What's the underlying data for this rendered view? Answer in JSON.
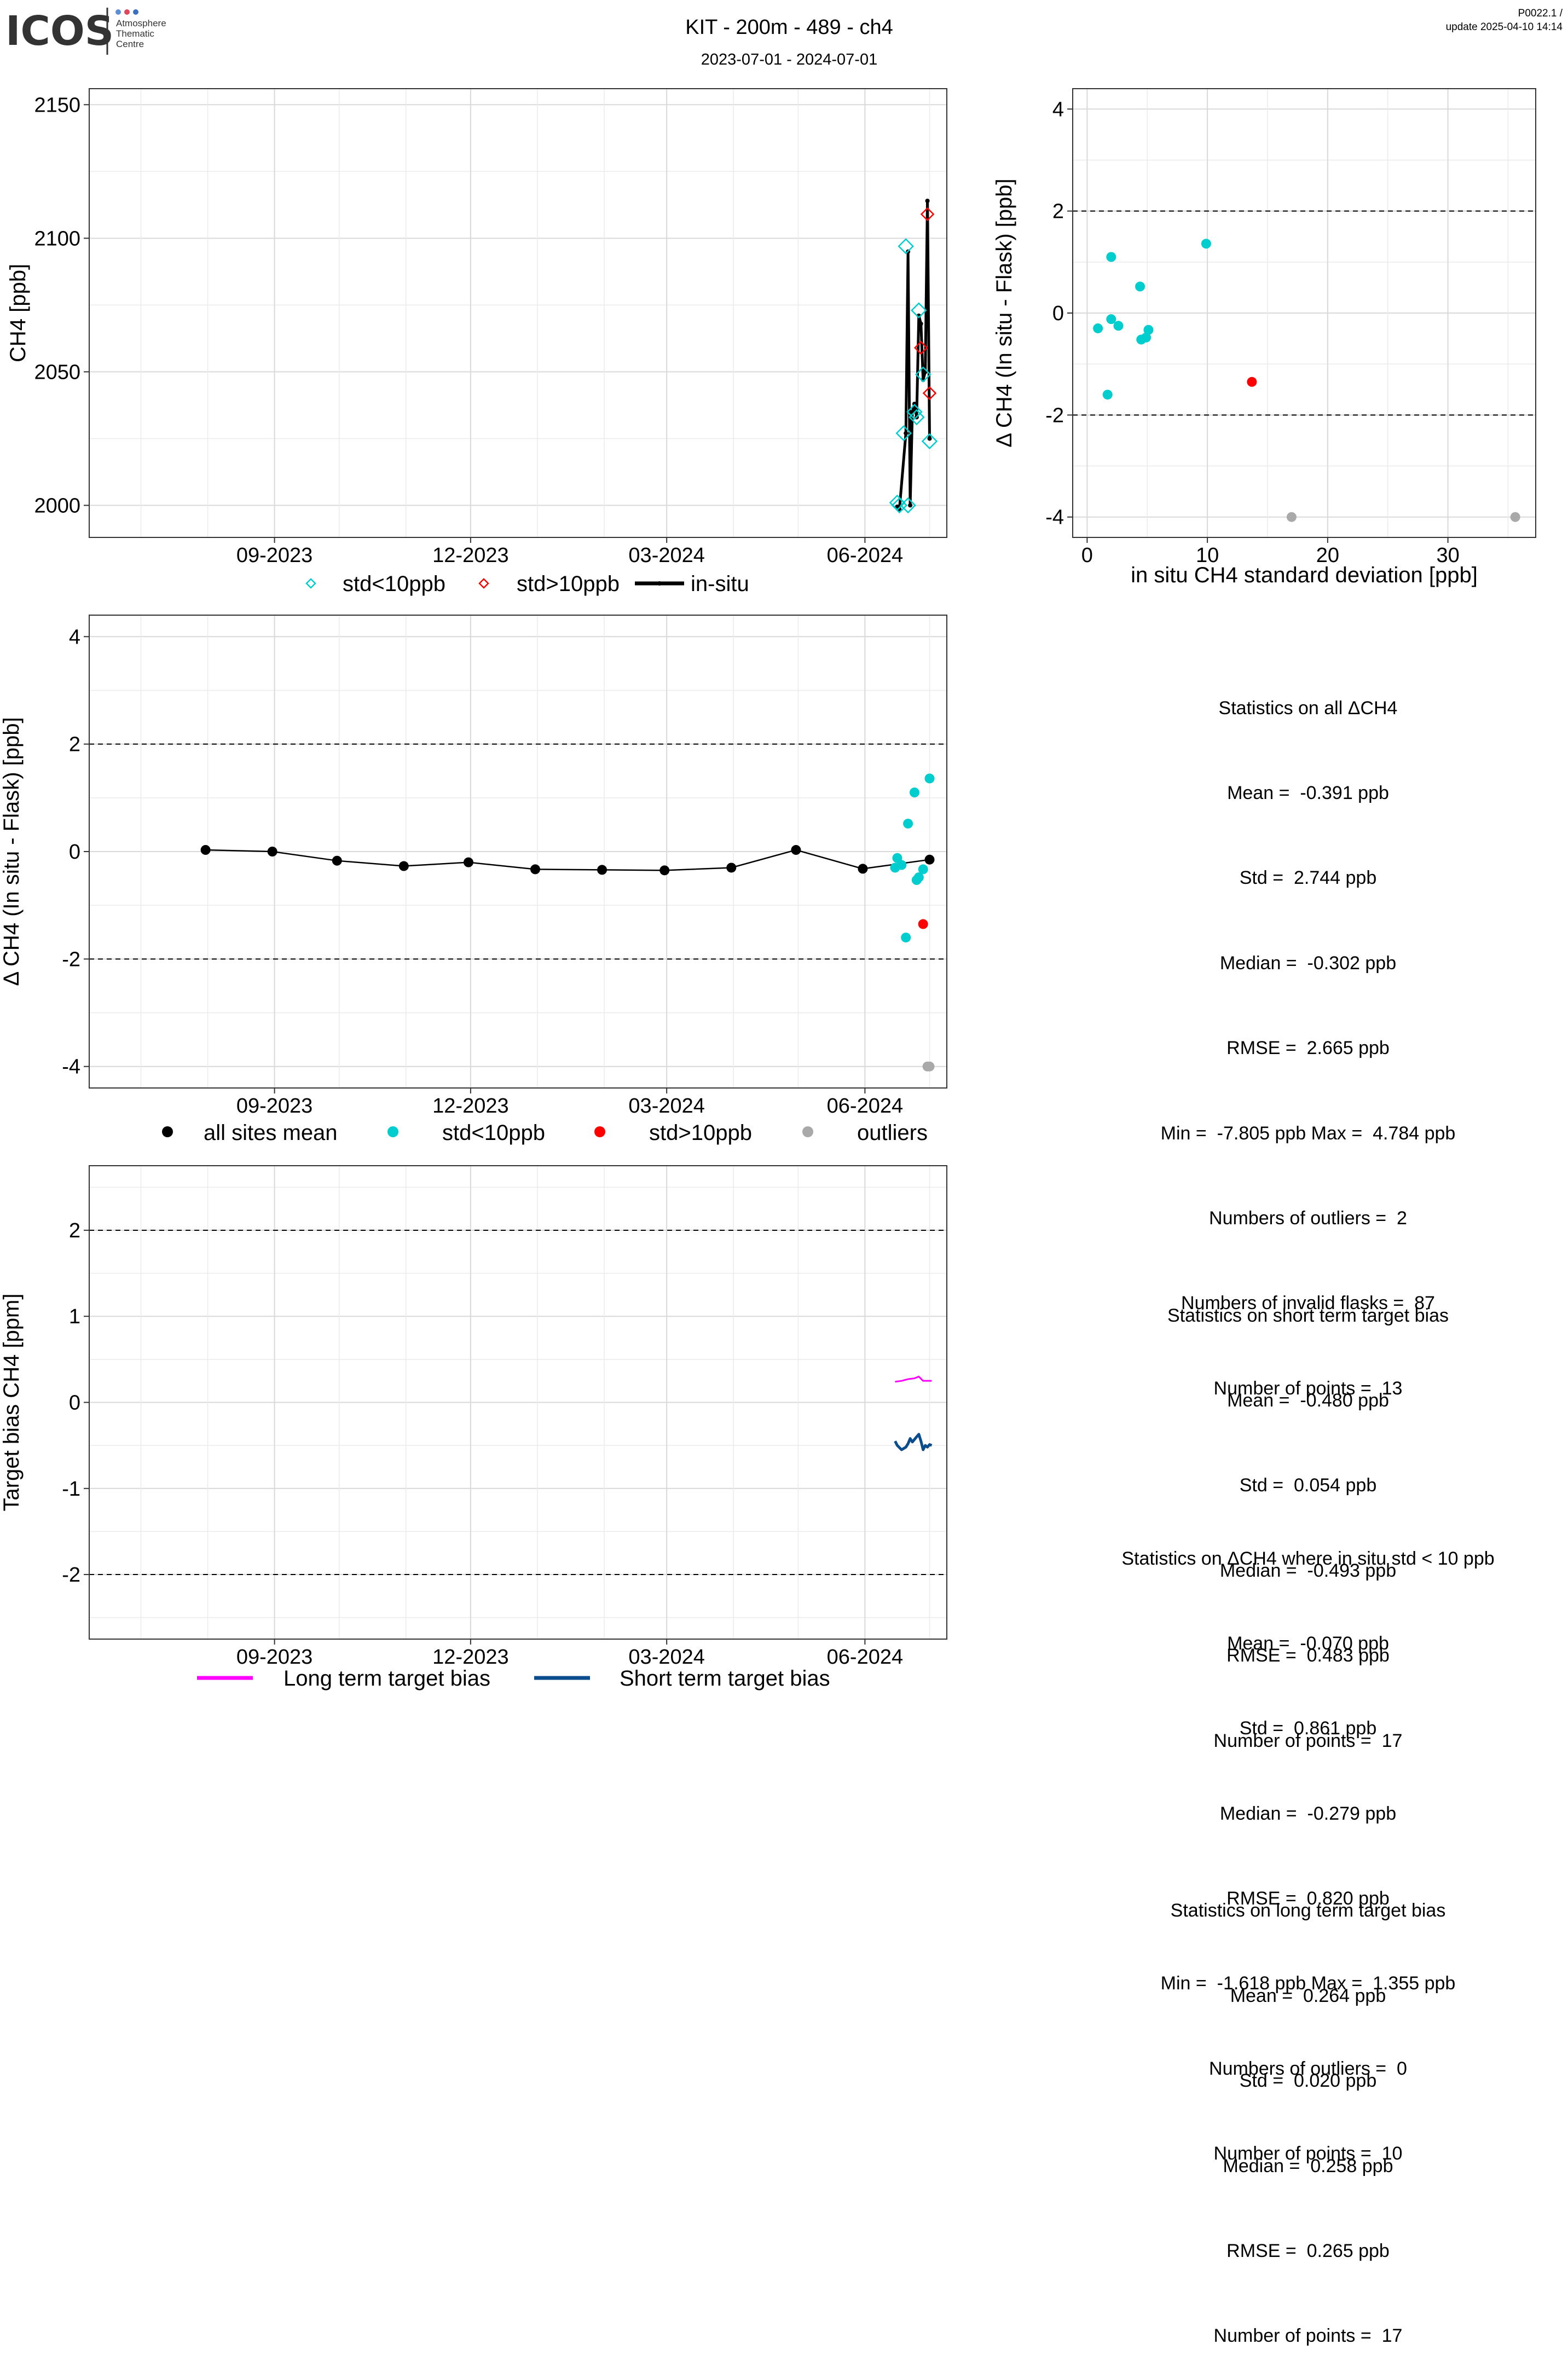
{
  "header": {
    "logo_text": "ICOS",
    "logo_sub": [
      "Atmosphere",
      "Thematic",
      "Centre"
    ],
    "title": "KIT - 200m - 489 - ch4",
    "subtitle": "2023-07-01 - 2024-07-01",
    "version": "P0022.1 /",
    "update": "update  2025-04-10 14:14"
  },
  "colors": {
    "cyan": "#00CDCD",
    "red": "#FF0000",
    "grey": "#A9A9A9",
    "black": "#000000",
    "magenta": "#FF00FF",
    "navy": "#0B4C8C"
  },
  "chart_data": [
    {
      "id": "timeseries",
      "type": "line",
      "ylabel": "CH4 [ppb]",
      "ylim": [
        1988,
        2156
      ],
      "yticks": [
        2000,
        2050,
        2100,
        2150
      ],
      "xticks": [
        "09-2023",
        "12-2023",
        "03-2024",
        "06-2024"
      ],
      "xtick_dates": [
        "2023-09-01",
        "2023-12-01",
        "2024-03-01",
        "2024-06-01"
      ],
      "xlim": [
        "2023-06-07",
        "2024-07-09"
      ],
      "legend": [
        "std<10ppb",
        "std>10ppb",
        "in-situ"
      ],
      "series": [
        {
          "name": "in-situ",
          "points": [
            [
              "2024-06-16",
              1999.5
            ],
            [
              "2024-06-17",
              1998.5
            ],
            [
              "2024-06-20",
              2027
            ],
            [
              "2024-06-21",
              2095
            ],
            [
              "2024-06-22",
              2000
            ],
            [
              "2024-06-23",
              2035
            ],
            [
              "2024-06-24",
              2038
            ],
            [
              "2024-06-25",
              2033
            ],
            [
              "2024-06-26",
              2071
            ],
            [
              "2024-06-27",
              2068
            ],
            [
              "2024-06-28",
              2047
            ],
            [
              "2024-06-29",
              2050
            ],
            [
              "2024-06-30",
              2114
            ],
            [
              "2024-07-01",
              2025
            ]
          ]
        },
        {
          "name": "std<10ppb",
          "points": [
            [
              "2024-06-16",
              2001
            ],
            [
              "2024-06-17",
              2000
            ],
            [
              "2024-06-19",
              2027
            ],
            [
              "2024-06-20",
              2097
            ],
            [
              "2024-06-21",
              2000
            ],
            [
              "2024-06-24",
              2035
            ],
            [
              "2024-06-25",
              2033
            ],
            [
              "2024-06-26",
              2073
            ],
            [
              "2024-06-28",
              2049
            ],
            [
              "2024-07-01",
              2024
            ]
          ]
        },
        {
          "name": "std>10ppb",
          "points": [
            [
              "2024-06-27",
              2059
            ],
            [
              "2024-06-30",
              2109
            ],
            [
              "2024-07-01",
              2042
            ]
          ]
        }
      ]
    },
    {
      "id": "scatter",
      "type": "scatter",
      "xlabel": "in situ CH4 standard deviation [ppb]",
      "ylabel": "Δ CH4 (In situ - Flask) [ppb]",
      "xlim": [
        -1.2,
        37.3
      ],
      "ylim": [
        -4.4,
        4.4
      ],
      "xticks": [
        0,
        10,
        20,
        30
      ],
      "yticks": [
        -4,
        -2,
        0,
        2,
        4
      ],
      "hlines": [
        2,
        -2
      ],
      "series": [
        {
          "name": "std<10ppb",
          "points": [
            [
              0.9,
              -0.3
            ],
            [
              2.0,
              1.1
            ],
            [
              2.0,
              -0.12
            ],
            [
              1.7,
              -1.6
            ],
            [
              2.6,
              -0.25
            ],
            [
              4.4,
              0.52
            ],
            [
              4.5,
              -0.52
            ],
            [
              4.9,
              -0.48
            ],
            [
              5.1,
              -0.33
            ],
            [
              9.9,
              1.36
            ]
          ]
        },
        {
          "name": "std>10ppb",
          "points": [
            [
              13.7,
              -1.35
            ]
          ]
        },
        {
          "name": "outliers",
          "points": [
            [
              17.0,
              -4.0
            ],
            [
              35.6,
              -4.0
            ]
          ]
        }
      ]
    },
    {
      "id": "diff",
      "type": "scatter",
      "ylabel": "Δ CH4 (In situ - Flask) [ppb]",
      "ylim": [
        -4.4,
        4.4
      ],
      "yticks": [
        -4,
        -2,
        0,
        2,
        4
      ],
      "hlines": [
        2,
        -2
      ],
      "xticks": [
        "09-2023",
        "12-2023",
        "03-2024",
        "06-2024"
      ],
      "xtick_dates": [
        "2023-09-01",
        "2023-12-01",
        "2024-03-01",
        "2024-06-01"
      ],
      "xlim": [
        "2023-06-07",
        "2024-07-09"
      ],
      "legend": [
        "all sites mean",
        "std<10ppb",
        "std>10ppb",
        "outliers"
      ],
      "series": [
        {
          "name": "all sites mean",
          "points": [
            [
              "2023-07-31",
              0.03
            ],
            [
              "2023-08-31",
              0.0
            ],
            [
              "2023-09-30",
              -0.17
            ],
            [
              "2023-10-31",
              -0.27
            ],
            [
              "2023-11-30",
              -0.2
            ],
            [
              "2023-12-31",
              -0.33
            ],
            [
              "2024-01-31",
              -0.34
            ],
            [
              "2024-02-29",
              -0.35
            ],
            [
              "2024-03-31",
              -0.3
            ],
            [
              "2024-04-30",
              0.03
            ],
            [
              "2024-05-31",
              -0.32
            ],
            [
              "2024-07-01",
              -0.15
            ]
          ]
        },
        {
          "name": "std<10ppb",
          "points": [
            [
              "2024-06-15",
              -0.3
            ],
            [
              "2024-06-16",
              -0.12
            ],
            [
              "2024-06-18",
              -0.25
            ],
            [
              "2024-06-20",
              -1.6
            ],
            [
              "2024-06-21",
              0.52
            ],
            [
              "2024-06-24",
              1.1
            ],
            [
              "2024-06-25",
              -0.53
            ],
            [
              "2024-06-26",
              -0.48
            ],
            [
              "2024-06-28",
              -0.33
            ],
            [
              "2024-07-01",
              1.36
            ]
          ]
        },
        {
          "name": "std>10ppb",
          "points": [
            [
              "2024-06-28",
              -1.35
            ]
          ]
        },
        {
          "name": "outliers",
          "points": [
            [
              "2024-06-30",
              -4.0
            ],
            [
              "2024-07-01",
              -4.0
            ]
          ]
        }
      ]
    },
    {
      "id": "target",
      "type": "line",
      "ylabel": "Target bias CH4 [ppm]",
      "ylim": [
        -2.75,
        2.75
      ],
      "yticks": [
        -2,
        -1,
        0,
        1,
        2
      ],
      "ytick_labels": [
        "-2",
        "-1",
        "0",
        "1",
        "2"
      ],
      "hlines": [
        2,
        -2
      ],
      "xticks": [
        "09-2023",
        "12-2023",
        "03-2024",
        "06-2024"
      ],
      "xtick_dates": [
        "2023-09-01",
        "2023-12-01",
        "2024-03-01",
        "2024-06-01"
      ],
      "xlim": [
        "2023-06-07",
        "2024-07-09"
      ],
      "legend": [
        "Long term target bias",
        "Short term target bias"
      ],
      "series": [
        {
          "name": "Long term target bias",
          "points": [
            [
              "2024-06-15",
              0.24
            ],
            [
              "2024-06-18",
              0.25
            ],
            [
              "2024-06-21",
              0.27
            ],
            [
              "2024-06-24",
              0.28
            ],
            [
              "2024-06-26",
              0.3
            ],
            [
              "2024-06-28",
              0.25
            ],
            [
              "2024-06-30",
              0.25
            ],
            [
              "2024-07-02",
              0.25
            ]
          ]
        },
        {
          "name": "Short term target bias",
          "points": [
            [
              "2024-06-15",
              -0.45
            ],
            [
              "2024-06-16",
              -0.5
            ],
            [
              "2024-06-18",
              -0.55
            ],
            [
              "2024-06-20",
              -0.52
            ],
            [
              "2024-06-21",
              -0.48
            ],
            [
              "2024-06-22",
              -0.42
            ],
            [
              "2024-06-23",
              -0.46
            ],
            [
              "2024-06-25",
              -0.4
            ],
            [
              "2024-06-26",
              -0.37
            ],
            [
              "2024-06-27",
              -0.45
            ],
            [
              "2024-06-28",
              -0.55
            ],
            [
              "2024-06-29",
              -0.5
            ],
            [
              "2024-06-30",
              -0.52
            ],
            [
              "2024-07-01",
              -0.49
            ],
            [
              "2024-07-02",
              -0.5
            ]
          ]
        }
      ]
    }
  ],
  "stats_all": {
    "title": "Statistics on all ΔCH4",
    "lines": [
      "Mean =  -0.391 ppb",
      "Std =  2.744 ppb",
      "Median =  -0.302 ppb",
      "RMSE =  2.665 ppb",
      "Min =  -7.805 ppb Max =  4.784 ppb",
      "Numbers of outliers =  2",
      "Numbers of invalid flasks =  87",
      "Number of points =  13"
    ]
  },
  "stats_std": {
    "title": "Statistics on ΔCH4 where in situ std < 10 ppb",
    "lines": [
      "Mean =  -0.070 ppb",
      "Std =  0.861 ppb",
      "Median =  -0.279 ppb",
      "RMSE =  0.820 ppb",
      "Min =  -1.618 ppb Max =  1.355 ppb",
      "Numbers of outliers =  0",
      "Number of points =  10"
    ]
  },
  "stats_short": {
    "title": "Statistics on short term target bias",
    "lines": [
      "Mean =  -0.480 ppb",
      "Std =  0.054 ppb",
      "Median =  -0.493 ppb",
      "RMSE =  0.483 ppb",
      "Number of points =  17"
    ]
  },
  "stats_long": {
    "title": "Statistics on long term target bias",
    "lines": [
      "Mean =  0.264 ppb",
      "Std =  0.020 ppb",
      "Median =  0.258 ppb",
      "RMSE =  0.265 ppb",
      "Number of points =  17"
    ]
  }
}
